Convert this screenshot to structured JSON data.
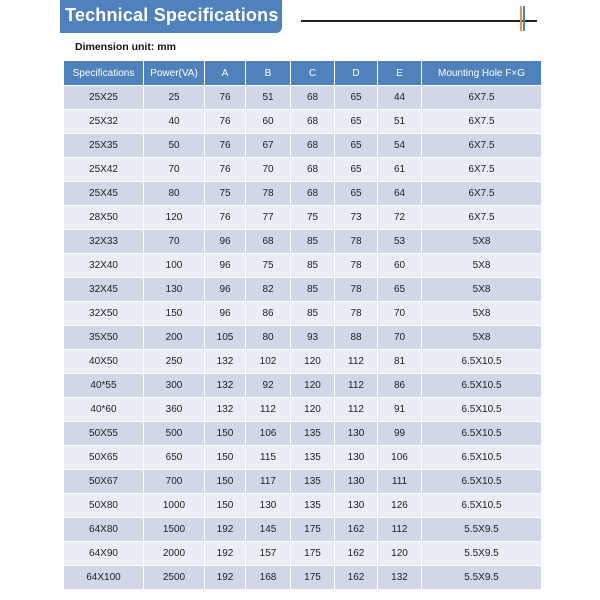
{
  "title": "Technical Specifications",
  "subtitle": "Dimension unit: mm",
  "colors": {
    "header": "#4f81bd",
    "row_odd": "#d0d8e8",
    "row_even": "#e9edf4",
    "accent_orange": "#e8924a",
    "accent_blue": "#4f81bd"
  },
  "table": {
    "columns": [
      "Specifications",
      "Power(VA)",
      "A",
      "B",
      "C",
      "D",
      "E",
      "Mounting Hole F×G"
    ],
    "rows": [
      [
        "25X25",
        "25",
        "76",
        "51",
        "68",
        "65",
        "44",
        "6X7.5"
      ],
      [
        "25X32",
        "40",
        "76",
        "60",
        "68",
        "65",
        "51",
        "6X7.5"
      ],
      [
        "25X35",
        "50",
        "76",
        "67",
        "68",
        "65",
        "54",
        "6X7.5"
      ],
      [
        "25X42",
        "70",
        "76",
        "70",
        "68",
        "65",
        "61",
        "6X7.5"
      ],
      [
        "25X45",
        "80",
        "75",
        "78",
        "68",
        "65",
        "64",
        "6X7.5"
      ],
      [
        "28X50",
        "120",
        "76",
        "77",
        "75",
        "73",
        "72",
        "6X7.5"
      ],
      [
        "32X33",
        "70",
        "96",
        "68",
        "85",
        "78",
        "53",
        "5X8"
      ],
      [
        "32X40",
        "100",
        "96",
        "75",
        "85",
        "78",
        "60",
        "5X8"
      ],
      [
        "32X45",
        "130",
        "96",
        "82",
        "85",
        "78",
        "65",
        "5X8"
      ],
      [
        "32X50",
        "150",
        "96",
        "86",
        "85",
        "78",
        "70",
        "5X8"
      ],
      [
        "35X50",
        "200",
        "105",
        "80",
        "93",
        "88",
        "70",
        "5X8"
      ],
      [
        "40X50",
        "250",
        "132",
        "102",
        "120",
        "112",
        "81",
        "6.5X10.5"
      ],
      [
        "40*55",
        "300",
        "132",
        "92",
        "120",
        "112",
        "86",
        "6.5X10.5"
      ],
      [
        "40*60",
        "360",
        "132",
        "112",
        "120",
        "112",
        "91",
        "6.5X10.5"
      ],
      [
        "50X55",
        "500",
        "150",
        "106",
        "135",
        "130",
        "99",
        "6.5X10.5"
      ],
      [
        "50X65",
        "650",
        "150",
        "115",
        "135",
        "130",
        "106",
        "6.5X10.5"
      ],
      [
        "50X67",
        "700",
        "150",
        "117",
        "135",
        "130",
        "111",
        "6.5X10.5"
      ],
      [
        "50X80",
        "1000",
        "150",
        "130",
        "135",
        "130",
        "126",
        "6.5X10.5"
      ],
      [
        "64X80",
        "1500",
        "192",
        "145",
        "175",
        "162",
        "112",
        "5.5X9.5"
      ],
      [
        "64X90",
        "2000",
        "192",
        "157",
        "175",
        "162",
        "120",
        "5.5X9.5"
      ],
      [
        "64X100",
        "2500",
        "192",
        "168",
        "175",
        "162",
        "132",
        "5.5X9.5"
      ]
    ]
  }
}
